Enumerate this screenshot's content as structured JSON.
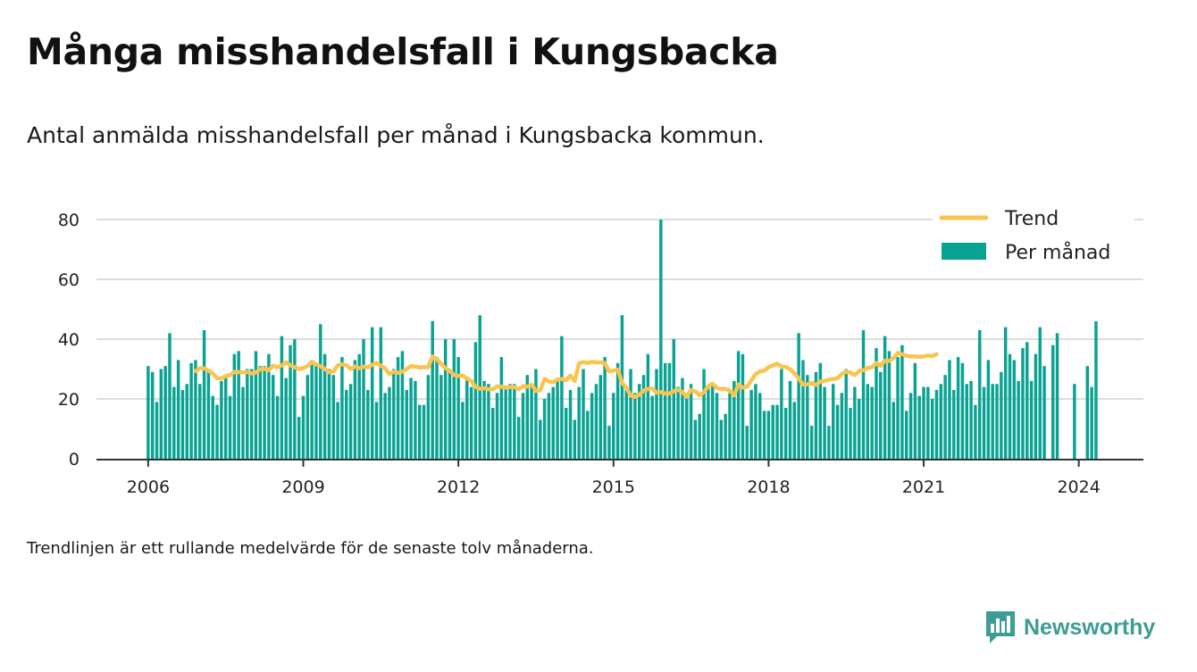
{
  "title": "Många misshandelsfall i Kungsbacka",
  "subtitle": "Antal anmälda misshandelsfall per månad i Kungsbacka kommun.",
  "footnote": "Trendlinjen är ett rullande medelvärde för de senaste tolv månaderna.",
  "brand": {
    "name": "Newsworthy",
    "icon": "newsworthy-bar-chart-icon"
  },
  "colors": {
    "bars": "#0aa393",
    "trend": "#fac450",
    "grid": "#dddddd",
    "axis": "#333333",
    "brand": "#3d9c95"
  },
  "chart_data": {
    "type": "bar",
    "x_start": "2006-01",
    "x_end": "2024-06",
    "xlim": [
      "2005-01",
      "2025-04"
    ],
    "ylim": [
      0,
      80
    ],
    "yticks": [
      0,
      20,
      40,
      60,
      80
    ],
    "xticks": [
      "2006",
      "2009",
      "2012",
      "2015",
      "2018",
      "2021",
      "2024"
    ],
    "grid": "horizontal",
    "legend_position": "top-right",
    "series": [
      {
        "name": "Per månad",
        "type": "bar",
        "values": [
          31,
          29,
          19,
          30,
          31,
          42,
          24,
          33,
          23,
          25,
          32,
          33,
          25,
          43,
          29,
          21,
          18,
          26,
          28,
          21,
          35,
          36,
          24,
          30,
          30,
          36,
          31,
          31,
          35,
          28,
          21,
          41,
          27,
          38,
          40,
          14,
          21,
          28,
          33,
          32,
          45,
          35,
          30,
          28,
          19,
          34,
          23,
          25,
          33,
          35,
          40,
          23,
          44,
          19,
          44,
          22,
          24,
          30,
          34,
          36,
          23,
          27,
          26,
          18,
          18,
          28,
          46,
          34,
          28,
          40,
          30,
          40,
          34,
          19,
          27,
          24,
          39,
          48,
          26,
          25,
          17,
          22,
          34,
          24,
          25,
          25,
          14,
          22,
          28,
          25,
          30,
          13,
          20,
          22,
          24,
          27,
          41,
          17,
          23,
          13,
          24,
          30,
          16,
          22,
          25,
          28,
          34,
          11,
          22,
          32,
          48,
          23,
          30,
          22,
          25,
          28,
          35,
          21,
          30,
          80,
          32,
          32,
          40,
          24,
          27,
          21,
          25,
          13,
          15,
          30,
          24,
          25,
          22,
          13,
          15,
          22,
          26,
          36,
          35,
          11,
          23,
          25,
          22,
          16,
          16,
          18,
          18,
          30,
          17,
          26,
          19,
          42,
          33,
          28,
          11,
          29,
          32,
          24,
          11,
          25,
          18,
          22,
          30,
          17,
          24,
          20,
          43,
          25,
          24,
          37,
          29,
          41,
          36,
          19,
          34,
          38,
          16,
          22,
          32,
          21,
          24,
          24,
          20,
          23,
          25,
          28,
          33,
          23,
          34,
          32,
          25,
          26,
          18,
          43,
          24,
          33,
          25,
          25,
          29,
          44,
          35,
          33,
          26,
          37,
          39,
          26,
          35,
          44,
          31,
          null,
          38,
          42,
          null,
          null,
          null,
          25,
          null,
          null,
          31,
          24,
          46,
          null
        ],
        "color": "#0aa393"
      },
      {
        "name": "Trend",
        "type": "line",
        "start": "2006-12",
        "values": [
          29.3,
          30.2,
          30.2,
          29.5,
          28.4,
          27.0,
          26.9,
          27.6,
          28.0,
          29.0,
          29.0,
          28.9,
          29.0,
          28.5,
          28.8,
          30.0,
          30.1,
          29.6,
          31.1,
          30.6,
          31.2,
          32.3,
          31.2,
          30.6,
          30.0,
          30.3,
          31.0,
          32.3,
          31.6,
          30.9,
          30.1,
          28.9,
          29.2,
          31.2,
          31.6,
          31.2,
          30.1,
          30.8,
          30.3,
          30.8,
          30.6,
          31.4,
          32.0,
          31.1,
          30.2,
          28.3,
          29.1,
          28.7,
          29.1,
          30.0,
          31.0,
          30.8,
          30.5,
          30.6,
          30.6,
          34.2,
          33.3,
          31.7,
          30.3,
          29.4,
          28.0,
          27.7,
          27.8,
          26.8,
          26.0,
          24.0,
          23.4,
          23.6,
          23.2,
          23.2,
          24.2,
          24.1,
          23.8,
          24.0,
          24.0,
          23.2,
          24.3,
          24.1,
          24.8,
          22.7,
          22.9,
          26.7,
          25.8,
          25.6,
          26.5,
          26.7,
          26.2,
          27.8,
          26.0,
          31.9,
          32.3,
          32.1,
          32.4,
          32.2,
          32.2,
          32.0,
          29.2,
          29.5,
          29.8,
          25.4,
          23.7,
          21.1,
          20.7,
          21.4,
          22.8,
          23.3,
          23.5,
          22.1,
          22.3,
          21.8,
          21.8,
          22.6,
          23.0,
          22.3,
          20.7,
          23.0,
          22.5,
          21.2,
          22.3,
          24.2,
          25.1,
          23.6,
          23.4,
          23.3,
          22.8,
          21.2,
          24.8,
          23.8,
          24.1,
          26.2,
          28.3,
          29.2,
          29.5,
          30.6,
          31.2,
          31.8,
          30.8,
          30.7,
          29.9,
          28.6,
          26.8,
          24.8,
          24.9,
          25.3,
          24.7,
          25.8,
          26.1,
          26.4,
          26.7,
          26.9,
          28.4,
          29.1,
          28.8,
          28.0,
          29.3,
          29.6,
          30.4,
          30.6,
          32.0,
          31.0,
          32.8,
          32.7,
          33.6,
          35.4,
          35.0,
          34.4,
          34.2,
          34.2,
          34.1,
          34.2,
          34.5,
          34.3,
          35.0
        ],
        "color": "#fac450"
      }
    ]
  }
}
